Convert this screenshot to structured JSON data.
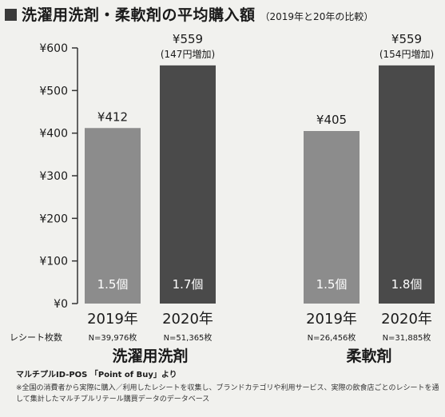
{
  "title": "洗濯用洗剤・柔軟剤の平均購入額",
  "subtitle": "（2019年と20年の比較）",
  "receipt_label": "レシート枚数",
  "source": "マルチプルID-POS 「Point of Buy」より",
  "note": "※全国の消費者から実際に購入／利用したレシートを収集し、ブランドカテゴリや利用サービス、実際の飲食店ごとのレシートを通して集計したマルチプルリテール購買データのデータベース",
  "colors": {
    "bar_2019": "#8c8c8c",
    "bar_2020": "#4a4a4a",
    "axis": "#333333"
  },
  "chart_data": {
    "type": "bar",
    "yticks": [
      "¥0",
      "¥100",
      "¥200",
      "¥300",
      "¥400",
      "¥500",
      "¥600"
    ],
    "ylim": [
      0,
      600
    ],
    "grid": false,
    "groups": [
      {
        "name": "洗濯用洗剤",
        "bars": [
          {
            "year": "2019年",
            "value": 412,
            "value_label": "¥412",
            "note": "",
            "items": "1.5個",
            "n": "N=39,976枚"
          },
          {
            "year": "2020年",
            "value": 559,
            "value_label": "¥559",
            "note": "(147円増加)",
            "items": "1.7個",
            "n": "N=51,365枚"
          }
        ]
      },
      {
        "name": "柔軟剤",
        "bars": [
          {
            "year": "2019年",
            "value": 405,
            "value_label": "¥405",
            "note": "",
            "items": "1.5個",
            "n": "N=26,456枚"
          },
          {
            "year": "2020年",
            "value": 559,
            "value_label": "¥559",
            "note": "(154円増加)",
            "items": "1.8個",
            "n": "N=31,885枚"
          }
        ]
      }
    ]
  }
}
